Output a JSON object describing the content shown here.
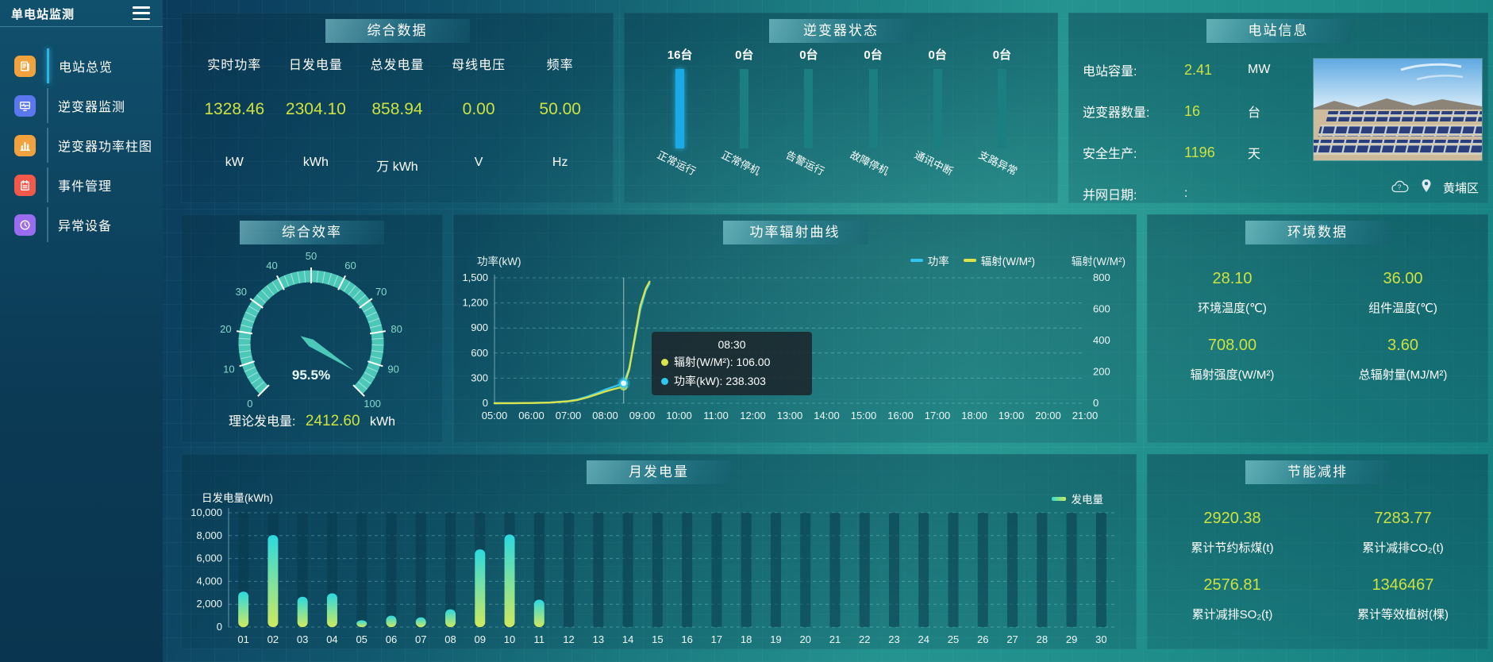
{
  "app": {
    "title": "单电站监测"
  },
  "colors": {
    "accent_value": "#cde23e",
    "highlight_bar": "#1aaae6",
    "status_bar": "#1b7e80",
    "gauge": "#4cc8b8"
  },
  "sidebar": {
    "items": [
      {
        "id": "station-overview",
        "label": "电站总览",
        "icon": "newspaper",
        "color": "#efa23d",
        "active": true
      },
      {
        "id": "inverter-monitor",
        "label": "逆变器监测",
        "icon": "monitor-wave",
        "color": "#5b77ee",
        "active": false
      },
      {
        "id": "inverter-power-chart",
        "label": "逆变器功率柱图",
        "icon": "bar-chart",
        "color": "#efa23d",
        "active": false
      },
      {
        "id": "event-management",
        "label": "事件管理",
        "icon": "notebook",
        "color": "#f2594b",
        "active": false
      },
      {
        "id": "abnormal-devices",
        "label": "异常设备",
        "icon": "device-clock",
        "color": "#9a6cf0",
        "active": false
      }
    ]
  },
  "panels": {
    "summary": {
      "title": "综合数据",
      "metrics": [
        {
          "label": "实时功率",
          "value": "1328.46",
          "unit": "kW"
        },
        {
          "label": "日发电量",
          "value": "2304.10",
          "unit": "kWh"
        },
        {
          "label": "总发电量",
          "value": "858.94",
          "unit": "万 kWh"
        },
        {
          "label": "母线电压",
          "value": "0.00",
          "unit": "V"
        },
        {
          "label": "频率",
          "value": "50.00",
          "unit": "Hz"
        }
      ]
    },
    "inverter_status": {
      "title": "逆变器状态",
      "items": [
        {
          "count": "16台",
          "label": "正常运行",
          "highlight": true
        },
        {
          "count": "0台",
          "label": "正常停机",
          "highlight": false
        },
        {
          "count": "0台",
          "label": "告警运行",
          "highlight": false
        },
        {
          "count": "0台",
          "label": "故障停机",
          "highlight": false
        },
        {
          "count": "0台",
          "label": "通讯中断",
          "highlight": false
        },
        {
          "count": "0台",
          "label": "支路异常",
          "highlight": false
        }
      ]
    },
    "station_info": {
      "title": "电站信息",
      "rows": [
        {
          "label": "电站容量:",
          "value": "2.41",
          "unit": "MW",
          "accent": true
        },
        {
          "label": "逆变器数量:",
          "value": "16",
          "unit": "台",
          "accent": true
        },
        {
          "label": "安全生产:",
          "value": "1196",
          "unit": "天",
          "accent": true
        },
        {
          "label": "并网日期: ",
          "value": ":",
          "unit": "",
          "accent": false
        }
      ],
      "district": "黄埔区"
    },
    "efficiency": {
      "title": "综合效率",
      "theory_label": "理论发电量:",
      "theory_value": "2412.60",
      "theory_unit": "kWh"
    },
    "power_curve": {
      "title": "功率辐射曲线"
    },
    "environment": {
      "title": "环境数据",
      "metrics": [
        {
          "value": "28.10",
          "label": "环境温度(℃)"
        },
        {
          "value": "36.00",
          "label": "组件温度(℃)"
        },
        {
          "value": "708.00",
          "label": "辐射强度(W/M²)"
        },
        {
          "value": "3.60",
          "label": "总辐射量(MJ/M²)"
        }
      ]
    },
    "monthly": {
      "title": "月发电量"
    },
    "saving": {
      "title": "节能减排",
      "metrics": [
        {
          "value": "2920.38",
          "label": "累计节约标煤(t)"
        },
        {
          "value": "7283.77",
          "label": "累计减排CO₂(t)"
        },
        {
          "value": "2576.81",
          "label": "累计减排SO₂(t)"
        },
        {
          "value": "1346467",
          "label": "累计等效植树(棵)"
        }
      ]
    }
  },
  "chart_data": [
    {
      "id": "power_radiation",
      "type": "line",
      "title": "功率辐射曲线",
      "y_left": {
        "label": "功率(kW)",
        "min": 0,
        "max": 1500,
        "ticks": [
          0,
          300,
          600,
          900,
          1200,
          1500
        ]
      },
      "y_right": {
        "label": "辐射(W/M²)",
        "min": 0,
        "max": 800,
        "ticks": [
          0,
          200,
          400,
          600,
          800
        ]
      },
      "x_labels": [
        "05:00",
        "06:00",
        "07:00",
        "08:00",
        "09:00",
        "10:00",
        "11:00",
        "12:00",
        "13:00",
        "14:00",
        "15:00",
        "16:00",
        "17:00",
        "18:00",
        "19:00",
        "20:00",
        "21:00"
      ],
      "x_range": [
        5,
        21
      ],
      "legend": [
        {
          "name": "功率",
          "color": "#31c5f2"
        },
        {
          "name": "辐射(W/M²)",
          "color": "#d9e44a"
        }
      ],
      "series": [
        {
          "name": "功率",
          "axis": "left",
          "color": "#31c5f2",
          "points": [
            [
              5,
              0
            ],
            [
              5.5,
              1
            ],
            [
              6,
              3
            ],
            [
              6.5,
              9
            ],
            [
              7,
              26
            ],
            [
              7.25,
              45
            ],
            [
              7.5,
              78
            ],
            [
              7.75,
              118
            ],
            [
              8,
              162
            ],
            [
              8.25,
              200
            ],
            [
              8.5,
              238.303
            ],
            [
              8.65,
              420
            ],
            [
              8.8,
              760
            ],
            [
              8.95,
              1120
            ],
            [
              9.1,
              1350
            ],
            [
              9.2,
              1430
            ]
          ]
        },
        {
          "name": "辐射(W/M²)",
          "axis": "right",
          "color": "#d9e44a",
          "points": [
            [
              5,
              0
            ],
            [
              5.5,
              0.5
            ],
            [
              6,
              1.5
            ],
            [
              6.5,
              4
            ],
            [
              7,
              12
            ],
            [
              7.25,
              21
            ],
            [
              7.5,
              36
            ],
            [
              7.75,
              55
            ],
            [
              8,
              75
            ],
            [
              8.25,
              91
            ],
            [
              8.5,
              106
            ],
            [
              8.65,
              215
            ],
            [
              8.8,
              420
            ],
            [
              8.95,
              620
            ],
            [
              9.1,
              730
            ],
            [
              9.2,
              775
            ]
          ]
        }
      ],
      "tooltip": {
        "time": "08:30",
        "x": 8.5,
        "entries": [
          {
            "name": "辐射(W/M²)",
            "value": "106.00",
            "color": "#d9e44a"
          },
          {
            "name": "功率(kW)",
            "value": "238.303",
            "color": "#31c5f2"
          }
        ]
      }
    },
    {
      "id": "monthly_energy",
      "type": "bar",
      "ylabel": "日发电量(kWh)",
      "legend": "发电量",
      "ylim": [
        0,
        10000
      ],
      "y_ticks": [
        0,
        2000,
        4000,
        6000,
        8000,
        10000
      ],
      "categories": [
        "01",
        "02",
        "03",
        "04",
        "05",
        "06",
        "07",
        "08",
        "09",
        "10",
        "11",
        "12",
        "13",
        "14",
        "15",
        "16",
        "17",
        "18",
        "19",
        "20",
        "21",
        "22",
        "23",
        "24",
        "25",
        "26",
        "27",
        "28",
        "29",
        "30"
      ],
      "values": [
        3100,
        8050,
        2650,
        2950,
        600,
        1000,
        850,
        1550,
        6800,
        8100,
        2400,
        0,
        0,
        0,
        0,
        0,
        0,
        0,
        0,
        0,
        0,
        0,
        0,
        0,
        0,
        0,
        0,
        0,
        0,
        0
      ],
      "bar_color_top": "#2bd9e0",
      "bar_color_bottom": "#cfe95e"
    },
    {
      "id": "efficiency_gauge",
      "type": "gauge",
      "min": 0,
      "max": 100,
      "value": 95.5,
      "display": "95.5%",
      "tick_labels": [
        0,
        10,
        20,
        30,
        40,
        50,
        60,
        70,
        80,
        90,
        100
      ],
      "color": "#4cc8b8"
    }
  ]
}
